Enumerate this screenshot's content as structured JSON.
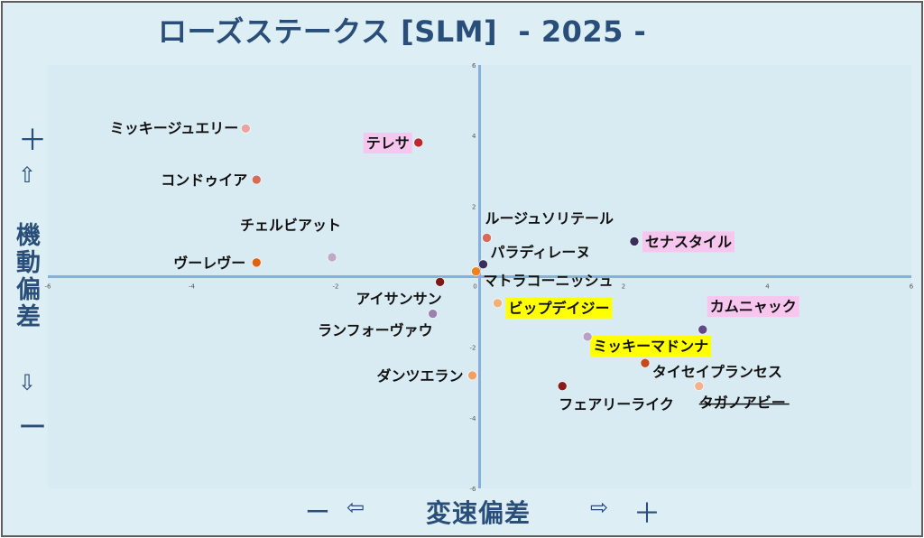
{
  "title": "ローズステークス [SLM]  - 2025 -",
  "axis_side": {
    "y_top_plus": "＋",
    "y_top_arrow": "⇧",
    "y_label": "機動偏差",
    "y_bottom_arrow": "⇩",
    "y_bottom_minus": "ー",
    "x_left_minus": "ー",
    "x_left_arrow": "⇦",
    "x_label": "変速偏差",
    "x_right_arrow": "⇨",
    "x_right_plus": "＋"
  },
  "chart_data": {
    "type": "scatter",
    "title": "ローズステークス [SLM]  - 2025 -",
    "xlabel": "変速偏差",
    "ylabel": "機動偏差",
    "xlim": [
      -6,
      6
    ],
    "ylim": [
      -6,
      6
    ],
    "x_ticks": [
      "-6",
      "-4",
      "-2",
      "0",
      "2",
      "4",
      "6"
    ],
    "y_ticks": [
      "6",
      "4",
      "2",
      "0",
      "-2",
      "-4",
      "-6"
    ],
    "grid": false,
    "highlight_colors": {
      "pink": "#f6c6ef",
      "yellow": "#ffff00"
    },
    "points": [
      {
        "name": "ミッキージュエリー",
        "x": -3.25,
        "y": 4.2,
        "color": "#e8a49e",
        "highlight": "",
        "strike": false
      },
      {
        "name": "テレサ",
        "x": -0.85,
        "y": 3.8,
        "color": "#c0272d",
        "highlight": "pink",
        "strike": false
      },
      {
        "name": "コンドゥイア",
        "x": -3.1,
        "y": 2.75,
        "color": "#d86a58",
        "highlight": "",
        "strike": false
      },
      {
        "name": "チェルビアット",
        "x": -2.05,
        "y": 0.55,
        "color": "#c0a8c8",
        "highlight": "",
        "strike": false
      },
      {
        "name": "ヴーレヴー",
        "x": -3.1,
        "y": 0.4,
        "color": "#e0640f",
        "highlight": "",
        "strike": false
      },
      {
        "name": "アイサンサン",
        "x": -0.55,
        "y": -0.15,
        "color": "#7a1a1a",
        "highlight": "",
        "strike": false
      },
      {
        "name": "ランフォーヴァウ",
        "x": -0.65,
        "y": -1.05,
        "color": "#9a82b0",
        "highlight": "",
        "strike": false
      },
      {
        "name": "ダンツエラン",
        "x": -0.1,
        "y": -2.8,
        "color": "#f2a061",
        "highlight": "",
        "strike": false
      },
      {
        "name": "ルージュソリテール",
        "x": 0.1,
        "y": 1.1,
        "color": "#d86a58",
        "highlight": "",
        "strike": false
      },
      {
        "name": "パラディレーヌ",
        "x": 0.05,
        "y": 0.35,
        "color": "#3a2f5a",
        "highlight": "",
        "strike": false
      },
      {
        "name": "マトラコーニッシュ",
        "x": -0.05,
        "y": 0.15,
        "color": "#f0801a",
        "highlight": "",
        "strike": false
      },
      {
        "name": "ビップデイジー",
        "x": 0.25,
        "y": -0.75,
        "color": "#f2b075",
        "highlight": "yellow",
        "strike": false
      },
      {
        "name": "セナスタイル",
        "x": 2.15,
        "y": 1.0,
        "color": "#3a2f5a",
        "highlight": "pink",
        "strike": false
      },
      {
        "name": "カムニャック",
        "x": 3.1,
        "y": -1.5,
        "color": "#5e4a86",
        "highlight": "pink",
        "strike": false
      },
      {
        "name": "ミッキーマドンナ",
        "x": 1.5,
        "y": -1.7,
        "color": "#b8a0c8",
        "highlight": "yellow",
        "strike": false
      },
      {
        "name": "タイセイプランセス",
        "x": 2.3,
        "y": -2.45,
        "color": "#c4491c",
        "highlight": "",
        "strike": false
      },
      {
        "name": "タガノアビー",
        "x": 3.05,
        "y": -3.1,
        "color": "#f2b28c",
        "highlight": "",
        "strike": true
      },
      {
        "name": "フェアリーライク",
        "x": 1.15,
        "y": -3.1,
        "color": "#8b1a1a",
        "highlight": "",
        "strike": false
      }
    ]
  }
}
